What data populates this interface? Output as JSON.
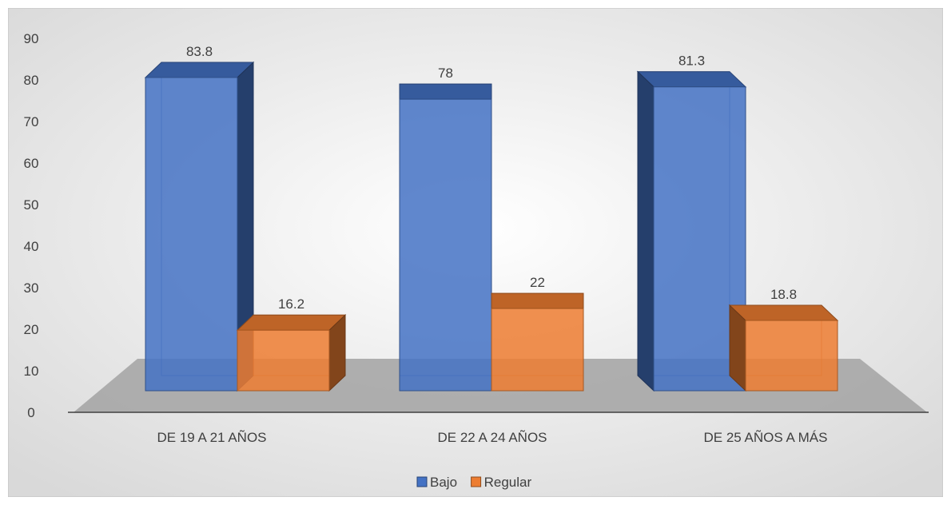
{
  "chart_data": {
    "type": "bar",
    "categories": [
      "DE 19 A 21 AÑOS",
      "DE 22 A 24 AÑOS",
      "DE 25 AÑOS A MÁS"
    ],
    "series": [
      {
        "name": "Bajo",
        "values": [
          83.8,
          78,
          81.3
        ],
        "color": "#4472C4"
      },
      {
        "name": "Regular",
        "values": [
          16.2,
          22,
          18.8
        ],
        "color": "#ED7D31"
      }
    ],
    "value_labels": [
      [
        "83.8",
        "78",
        "81.3"
      ],
      [
        "16.2",
        "22",
        "18.8"
      ]
    ],
    "yticks": [
      "0",
      "10",
      "20",
      "30",
      "40",
      "50",
      "60",
      "70",
      "80",
      "90"
    ],
    "ylim": [
      0,
      90
    ],
    "title": "",
    "xlabel": "",
    "ylabel": "",
    "legend": "bottom-center",
    "grid": false,
    "style": "3d-clustered-column"
  }
}
